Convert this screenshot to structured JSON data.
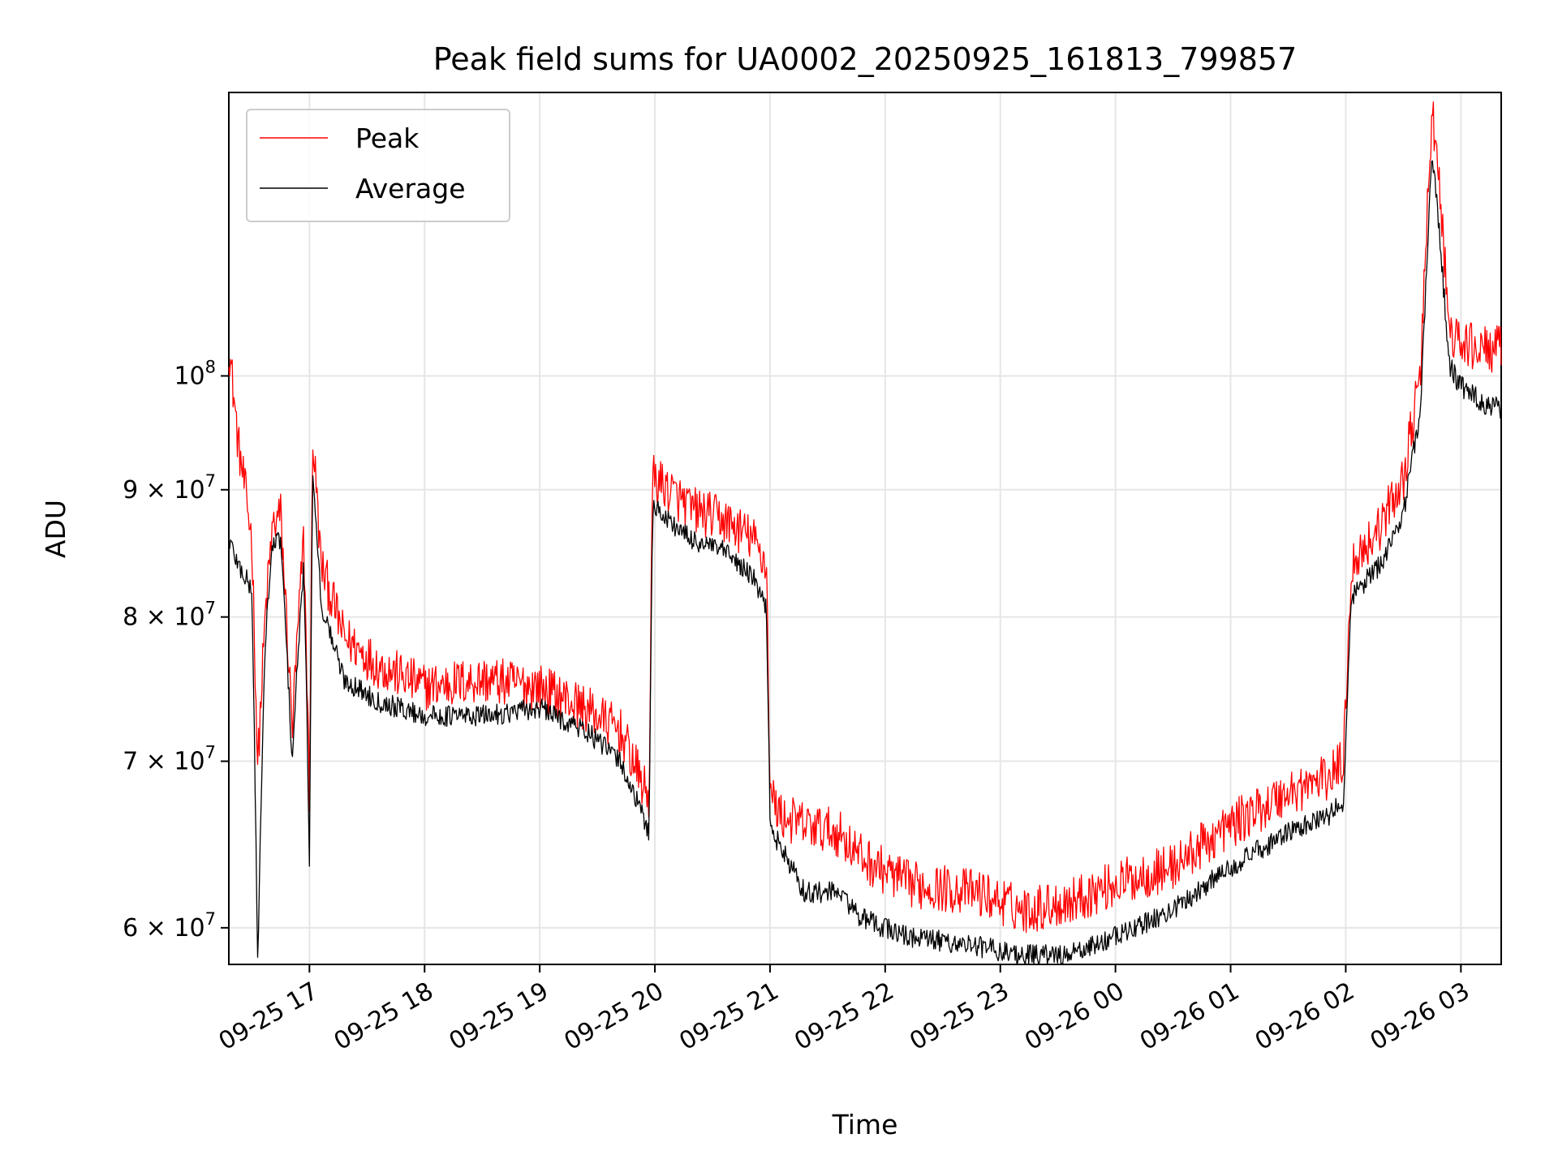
{
  "chart_data": {
    "type": "line",
    "title": "Peak field sums for UA0002_20250925_161813_799857",
    "xlabel": "Time",
    "ylabel": "ADU",
    "yscale": "log",
    "ylim": [
      58000000,
      130000000
    ],
    "xlim_hours": [
      16.3,
      27.35
    ],
    "grid": true,
    "legend_position": "top-left",
    "x_ticks": [
      {
        "label": "09-25 17",
        "hour": 17
      },
      {
        "label": "09-25 18",
        "hour": 18
      },
      {
        "label": "09-25 19",
        "hour": 19
      },
      {
        "label": "09-25 20",
        "hour": 20
      },
      {
        "label": "09-25 21",
        "hour": 21
      },
      {
        "label": "09-25 22",
        "hour": 22
      },
      {
        "label": "09-25 23",
        "hour": 23
      },
      {
        "label": "09-26 00",
        "hour": 24
      },
      {
        "label": "09-26 01",
        "hour": 25
      },
      {
        "label": "09-26 02",
        "hour": 26
      },
      {
        "label": "09-26 03",
        "hour": 27
      }
    ],
    "y_ticks": [
      {
        "mantissa": "6 × 10",
        "exp": "7",
        "value": 60000000
      },
      {
        "mantissa": "7 × 10",
        "exp": "7",
        "value": 70000000
      },
      {
        "mantissa": "8 × 10",
        "exp": "7",
        "value": 80000000
      },
      {
        "mantissa": "9 × 10",
        "exp": "7",
        "value": 90000000
      },
      {
        "mantissa": "10",
        "exp": "8",
        "value": 100000000
      }
    ],
    "series": [
      {
        "name": "Peak",
        "color": "#ff0000",
        "x_hours": [
          16.3,
          16.38,
          16.5,
          16.55,
          16.62,
          16.68,
          16.75,
          16.85,
          16.95,
          17.0,
          17.03,
          17.1,
          17.3,
          17.6,
          18.0,
          18.5,
          19.0,
          19.4,
          19.7,
          19.95,
          19.98,
          20.0,
          20.3,
          20.6,
          20.85,
          20.97,
          21.0,
          21.1,
          21.3,
          21.6,
          21.8,
          22.2,
          22.8,
          23.2,
          23.6,
          24.0,
          24.5,
          25.0,
          25.5,
          25.85,
          25.98,
          26.05,
          26.3,
          26.5,
          26.65,
          26.75,
          26.82,
          26.9,
          27.0,
          27.2,
          27.35
        ],
        "values": [
          103000000,
          94000000,
          86000000,
          69500000,
          80500000,
          87000000,
          88000000,
          72000000,
          86000000,
          68000000,
          94500000,
          84000000,
          78500000,
          76500000,
          75000000,
          75500000,
          75000000,
          73500000,
          72000000,
          67500000,
          91000000,
          91000000,
          88500000,
          87500000,
          86000000,
          84000000,
          68000000,
          66500000,
          66000000,
          65500000,
          64000000,
          62500000,
          62000000,
          61000000,
          61500000,
          62500000,
          63500000,
          66000000,
          68000000,
          69000000,
          70000000,
          84000000,
          87000000,
          91000000,
          100000000,
          128000000,
          118000000,
          104000000,
          103000000,
          102500000,
          102500000
        ]
      },
      {
        "name": "Average",
        "color": "#000000",
        "x_hours": [
          16.3,
          16.38,
          16.5,
          16.55,
          16.62,
          16.68,
          16.75,
          16.85,
          16.95,
          17.0,
          17.03,
          17.1,
          17.3,
          17.6,
          18.0,
          18.5,
          19.0,
          19.4,
          19.7,
          19.95,
          19.98,
          20.0,
          20.3,
          20.6,
          20.85,
          20.97,
          21.0,
          21.1,
          21.3,
          21.6,
          21.8,
          22.2,
          22.8,
          23.2,
          23.6,
          24.0,
          24.5,
          25.0,
          25.5,
          25.85,
          25.98,
          26.05,
          26.3,
          26.5,
          26.65,
          26.75,
          26.82,
          26.9,
          27.0,
          27.2,
          27.35
        ],
        "values": [
          86000000,
          84000000,
          82000000,
          58000000,
          79000000,
          85500000,
          86000000,
          70000000,
          84000000,
          64000000,
          92000000,
          81000000,
          75500000,
          74000000,
          73000000,
          73000000,
          73500000,
          72000000,
          70000000,
          65500000,
          88500000,
          88500000,
          86000000,
          85000000,
          83000000,
          80500000,
          66000000,
          64500000,
          62000000,
          62000000,
          60500000,
          59500000,
          59000000,
          58500000,
          58500000,
          59500000,
          61000000,
          63500000,
          65500000,
          66500000,
          67500000,
          81500000,
          84000000,
          88000000,
          97000000,
          123000000,
          113000000,
          101000000,
          99000000,
          97500000,
          97000000
        ]
      }
    ]
  }
}
